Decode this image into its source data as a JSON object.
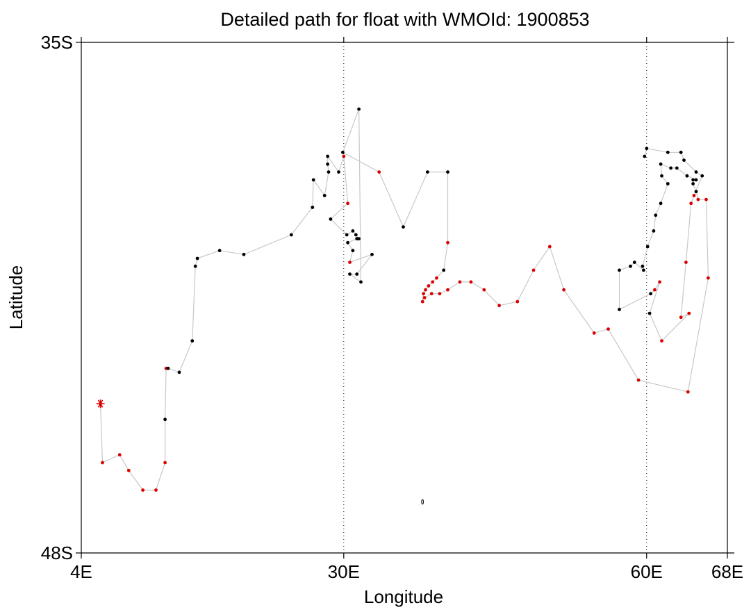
{
  "chart_data": {
    "type": "scatter",
    "title": "Detailed path for float with WMOId: 1900853",
    "xlabel": "Longitude",
    "ylabel": "Latitude",
    "xlim": [
      4,
      68
    ],
    "ylim": [
      -48,
      -35
    ],
    "x_ticks": [
      {
        "value": 4,
        "label": "4E"
      },
      {
        "value": 30,
        "label": "30E"
      },
      {
        "value": 60,
        "label": "60E"
      },
      {
        "value": 68,
        "label": "68E"
      }
    ],
    "y_ticks": [
      {
        "value": -35,
        "label": "35S"
      },
      {
        "value": -48,
        "label": "48S"
      }
    ],
    "grid": "dotted vertical lines at 30E and 60E",
    "colors": {
      "path": "#c8c8c8",
      "black_points": "#000000",
      "red_points": "#dd0000",
      "start_marker": "#dd0000"
    },
    "start_marker": {
      "lon": 5.9,
      "lat": -44.2,
      "symbol": "asterisk"
    },
    "island": {
      "lon": 37.8,
      "lat": -46.7
    },
    "series": [
      {
        "points": [
          {
            "lon": 5.9,
            "lat": -44.2,
            "color": "red"
          },
          {
            "lon": 6.1,
            "lat": -45.7,
            "color": "red"
          },
          {
            "lon": 7.8,
            "lat": -45.5,
            "color": "red"
          },
          {
            "lon": 8.7,
            "lat": -45.9,
            "color": "red"
          },
          {
            "lon": 10.1,
            "lat": -46.4,
            "color": "red"
          },
          {
            "lon": 11.4,
            "lat": -46.4,
            "color": "red"
          },
          {
            "lon": 12.3,
            "lat": -45.7,
            "color": "red"
          },
          {
            "lon": 12.3,
            "lat": -44.6,
            "color": "black"
          },
          {
            "lon": 12.4,
            "lat": -43.3,
            "color": "red"
          },
          {
            "lon": 12.6,
            "lat": -43.3,
            "color": "black"
          },
          {
            "lon": 13.7,
            "lat": -43.4,
            "color": "black"
          },
          {
            "lon": 15.0,
            "lat": -42.6,
            "color": "black"
          },
          {
            "lon": 15.3,
            "lat": -40.7,
            "color": "black"
          },
          {
            "lon": 15.5,
            "lat": -40.5,
            "color": "black"
          },
          {
            "lon": 17.7,
            "lat": -40.3,
            "color": "black"
          },
          {
            "lon": 20.1,
            "lat": -40.4,
            "color": "black"
          },
          {
            "lon": 24.8,
            "lat": -39.9,
            "color": "black"
          },
          {
            "lon": 26.9,
            "lat": -39.2,
            "color": "black"
          },
          {
            "lon": 27.0,
            "lat": -38.5,
            "color": "black"
          },
          {
            "lon": 28.1,
            "lat": -38.9,
            "color": "black"
          },
          {
            "lon": 28.5,
            "lat": -38.3,
            "color": "black"
          },
          {
            "lon": 28.4,
            "lat": -38.1,
            "color": "black"
          },
          {
            "lon": 28.4,
            "lat": -37.9,
            "color": "black"
          },
          {
            "lon": 29.5,
            "lat": -38.3,
            "color": "black"
          },
          {
            "lon": 30.0,
            "lat": -37.9,
            "color": "red"
          },
          {
            "lon": 30.4,
            "lat": -39.1,
            "color": "red"
          },
          {
            "lon": 28.7,
            "lat": -39.5,
            "color": "black"
          },
          {
            "lon": 30.3,
            "lat": -39.9,
            "color": "black"
          },
          {
            "lon": 30.9,
            "lat": -39.8,
            "color": "black"
          },
          {
            "lon": 31.2,
            "lat": -39.9,
            "color": "black"
          },
          {
            "lon": 31.5,
            "lat": -40.0,
            "color": "black"
          },
          {
            "lon": 31.3,
            "lat": -40.0,
            "color": "black"
          },
          {
            "lon": 30.4,
            "lat": -40.1,
            "color": "black"
          },
          {
            "lon": 30.9,
            "lat": -40.3,
            "color": "black"
          },
          {
            "lon": 30.6,
            "lat": -40.6,
            "color": "red"
          },
          {
            "lon": 32.8,
            "lat": -40.4,
            "color": "black"
          },
          {
            "lon": 31.3,
            "lat": -40.9,
            "color": "black"
          },
          {
            "lon": 30.6,
            "lat": -40.9,
            "color": "black"
          },
          {
            "lon": 31.7,
            "lat": -41.1,
            "color": "black"
          },
          {
            "lon": 31.5,
            "lat": -36.7,
            "color": "black"
          },
          {
            "lon": 29.9,
            "lat": -37.8,
            "color": "black"
          },
          {
            "lon": 33.5,
            "lat": -38.3,
            "color": "red"
          },
          {
            "lon": 35.9,
            "lat": -39.7,
            "color": "black"
          },
          {
            "lon": 38.3,
            "lat": -38.3,
            "color": "black"
          },
          {
            "lon": 40.3,
            "lat": -38.3,
            "color": "black"
          },
          {
            "lon": 40.3,
            "lat": -40.1,
            "color": "red"
          },
          {
            "lon": 39.9,
            "lat": -40.8,
            "color": "black"
          },
          {
            "lon": 39.2,
            "lat": -41.0,
            "color": "red"
          },
          {
            "lon": 38.8,
            "lat": -41.1,
            "color": "red"
          },
          {
            "lon": 38.4,
            "lat": -41.2,
            "color": "red"
          },
          {
            "lon": 38.1,
            "lat": -41.3,
            "color": "red"
          },
          {
            "lon": 37.9,
            "lat": -41.4,
            "color": "red"
          },
          {
            "lon": 37.8,
            "lat": -41.6,
            "color": "red"
          },
          {
            "lon": 38.0,
            "lat": -41.5,
            "color": "red"
          },
          {
            "lon": 38.7,
            "lat": -41.4,
            "color": "red"
          },
          {
            "lon": 39.5,
            "lat": -41.4,
            "color": "red"
          },
          {
            "lon": 40.3,
            "lat": -41.3,
            "color": "red"
          },
          {
            "lon": 41.5,
            "lat": -41.1,
            "color": "red"
          },
          {
            "lon": 42.6,
            "lat": -41.1,
            "color": "red"
          },
          {
            "lon": 43.9,
            "lat": -41.3,
            "color": "red"
          },
          {
            "lon": 45.4,
            "lat": -41.7,
            "color": "red"
          },
          {
            "lon": 47.2,
            "lat": -41.6,
            "color": "red"
          },
          {
            "lon": 48.8,
            "lat": -40.8,
            "color": "red"
          },
          {
            "lon": 50.4,
            "lat": -40.2,
            "color": "red"
          },
          {
            "lon": 51.8,
            "lat": -41.3,
            "color": "red"
          },
          {
            "lon": 54.8,
            "lat": -42.4,
            "color": "red"
          },
          {
            "lon": 56.2,
            "lat": -42.3,
            "color": "red"
          },
          {
            "lon": 59.2,
            "lat": -43.6,
            "color": "red"
          },
          {
            "lon": 64.1,
            "lat": -43.9,
            "color": "red"
          },
          {
            "lon": 66.1,
            "lat": -41.0,
            "color": "red"
          },
          {
            "lon": 65.9,
            "lat": -39.0,
            "color": "red"
          },
          {
            "lon": 65.1,
            "lat": -39.0,
            "color": "red"
          },
          {
            "lon": 64.9,
            "lat": -38.8,
            "color": "black"
          },
          {
            "lon": 64.6,
            "lat": -38.6,
            "color": "black"
          },
          {
            "lon": 64.6,
            "lat": -38.5,
            "color": "black"
          },
          {
            "lon": 64.9,
            "lat": -38.5,
            "color": "black"
          },
          {
            "lon": 64.0,
            "lat": -38.4,
            "color": "black"
          },
          {
            "lon": 63.0,
            "lat": -38.2,
            "color": "black"
          },
          {
            "lon": 62.4,
            "lat": -38.2,
            "color": "black"
          },
          {
            "lon": 61.4,
            "lat": -38.1,
            "color": "black"
          },
          {
            "lon": 61.5,
            "lat": -38.4,
            "color": "black"
          },
          {
            "lon": 62.1,
            "lat": -38.6,
            "color": "black"
          },
          {
            "lon": 61.4,
            "lat": -39.1,
            "color": "black"
          },
          {
            "lon": 60.9,
            "lat": -39.4,
            "color": "black"
          },
          {
            "lon": 60.7,
            "lat": -39.8,
            "color": "black"
          },
          {
            "lon": 60.1,
            "lat": -40.2,
            "color": "black"
          },
          {
            "lon": 59.6,
            "lat": -40.7,
            "color": "black"
          },
          {
            "lon": 59.7,
            "lat": -40.8,
            "color": "black"
          },
          {
            "lon": 58.8,
            "lat": -40.6,
            "color": "black"
          },
          {
            "lon": 58.4,
            "lat": -40.7,
            "color": "black"
          },
          {
            "lon": 57.3,
            "lat": -40.8,
            "color": "black"
          },
          {
            "lon": 57.3,
            "lat": -41.8,
            "color": "black"
          },
          {
            "lon": 60.4,
            "lat": -41.4,
            "color": "black"
          },
          {
            "lon": 60.8,
            "lat": -41.3,
            "color": "red"
          },
          {
            "lon": 61.3,
            "lat": -41.1,
            "color": "red"
          },
          {
            "lon": 60.3,
            "lat": -41.9,
            "color": "black"
          },
          {
            "lon": 61.5,
            "lat": -42.6,
            "color": "red"
          },
          {
            "lon": 64.2,
            "lat": -41.9,
            "color": "red"
          },
          {
            "lon": 63.4,
            "lat": -42.0,
            "color": "red"
          },
          {
            "lon": 63.9,
            "lat": -40.6,
            "color": "red"
          },
          {
            "lon": 64.4,
            "lat": -39.1,
            "color": "red"
          },
          {
            "lon": 64.7,
            "lat": -38.9,
            "color": "red"
          },
          {
            "lon": 65.5,
            "lat": -38.4,
            "color": "black"
          },
          {
            "lon": 64.9,
            "lat": -38.3,
            "color": "black"
          },
          {
            "lon": 63.7,
            "lat": -38.0,
            "color": "black"
          },
          {
            "lon": 63.4,
            "lat": -37.8,
            "color": "black"
          },
          {
            "lon": 62.1,
            "lat": -37.8,
            "color": "black"
          },
          {
            "lon": 60.0,
            "lat": -37.7,
            "color": "black"
          },
          {
            "lon": 59.8,
            "lat": -37.9,
            "color": "black"
          }
        ]
      }
    ]
  }
}
